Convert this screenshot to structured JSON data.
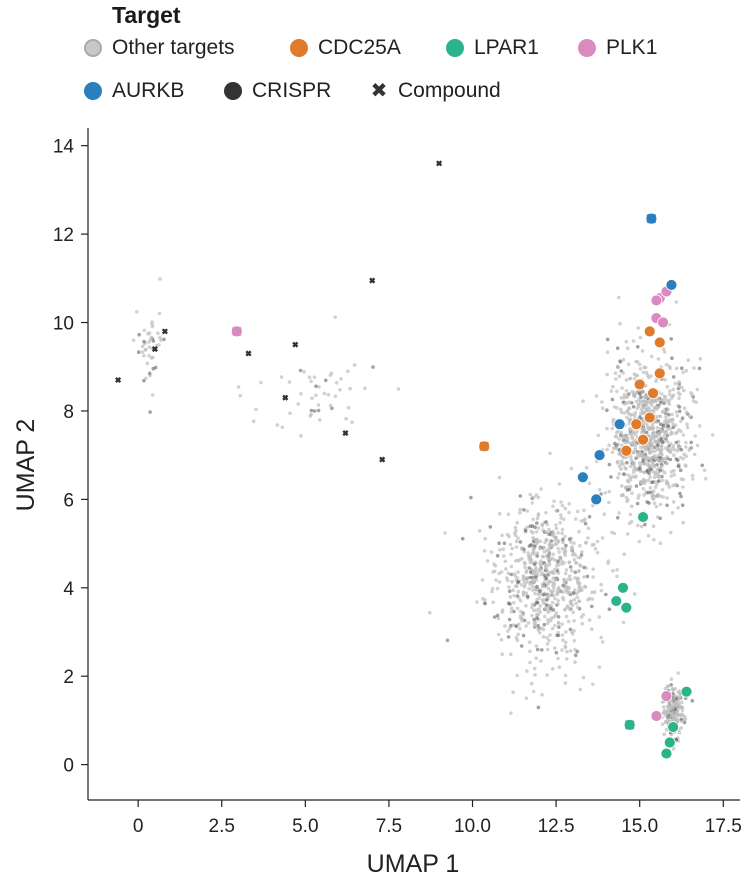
{
  "legend": {
    "title": "Target",
    "items": [
      {
        "label": "Other targets",
        "kind": "circle",
        "color": "#c8c8c8"
      },
      {
        "label": "CDC25A",
        "kind": "circle",
        "color": "#e07b2c"
      },
      {
        "label": "LPAR1",
        "kind": "circle",
        "color": "#2bb38b"
      },
      {
        "label": "PLK1",
        "kind": "circle",
        "color": "#d98bc0"
      },
      {
        "label": "AURKB",
        "kind": "circle",
        "color": "#2a7fbf"
      },
      {
        "label": "CRISPR",
        "kind": "circle",
        "color": "#333333"
      },
      {
        "label": "Compound",
        "kind": "cross",
        "color": "#333333"
      }
    ]
  },
  "chart_data": {
    "type": "scatter",
    "xlabel": "UMAP 1",
    "ylabel": "UMAP 2",
    "xlim": [
      -1.5,
      18.0
    ],
    "ylim": [
      -0.8,
      14.4
    ],
    "xticks": [
      0,
      2.5,
      5.0,
      7.5,
      10.0,
      12.5,
      15.0,
      17.5
    ],
    "xtick_labels": [
      "0",
      "2.5",
      "5.0",
      "7.5",
      "10.0",
      "12.5",
      "15.0",
      "17.5"
    ],
    "yticks": [
      0,
      2,
      4,
      6,
      8,
      10,
      12,
      14
    ],
    "ytick_labels": [
      "0",
      "2",
      "4",
      "6",
      "8",
      "10",
      "12",
      "14"
    ],
    "background_clusters": [
      {
        "name": "Other targets",
        "center": [
          12.1,
          4.2
        ],
        "spread": [
          1.4,
          1.5
        ],
        "count": 700
      },
      {
        "name": "Other targets",
        "center": [
          15.3,
          7.4
        ],
        "spread": [
          1.0,
          1.5
        ],
        "count": 850
      },
      {
        "name": "Other targets",
        "center": [
          16.0,
          1.2
        ],
        "spread": [
          0.25,
          0.5
        ],
        "count": 180
      },
      {
        "name": "Other targets",
        "center": [
          0.4,
          9.4
        ],
        "spread": [
          0.35,
          0.8
        ],
        "count": 45
      },
      {
        "name": "Other targets",
        "center": [
          5.5,
          8.4
        ],
        "spread": [
          1.8,
          0.8
        ],
        "count": 50
      }
    ],
    "series": [
      {
        "name": "CDC25A",
        "marker": "circle",
        "color": "#e07b2c",
        "points": [
          [
            15.3,
            9.8
          ],
          [
            15.6,
            9.55
          ],
          [
            15.0,
            8.6
          ],
          [
            15.4,
            8.4
          ],
          [
            15.6,
            8.85
          ],
          [
            15.3,
            7.85
          ],
          [
            14.9,
            7.7
          ],
          [
            14.6,
            7.1
          ],
          [
            15.1,
            7.35
          ],
          [
            10.35,
            7.2
          ]
        ]
      },
      {
        "name": "LPAR1",
        "marker": "circle",
        "color": "#2bb38b",
        "points": [
          [
            15.1,
            5.6
          ],
          [
            14.5,
            4.0
          ],
          [
            14.3,
            3.7
          ],
          [
            14.6,
            3.55
          ],
          [
            16.4,
            1.65
          ],
          [
            16.0,
            0.85
          ],
          [
            15.9,
            0.5
          ],
          [
            15.8,
            0.25
          ],
          [
            14.7,
            0.9
          ]
        ]
      },
      {
        "name": "PLK1",
        "marker": "circle",
        "color": "#d98bc0",
        "points": [
          [
            15.5,
            10.1
          ],
          [
            15.6,
            10.55
          ],
          [
            15.8,
            10.7
          ],
          [
            15.5,
            10.5
          ],
          [
            15.7,
            10.0
          ],
          [
            15.8,
            1.55
          ],
          [
            15.5,
            1.1
          ],
          [
            2.95,
            9.8
          ]
        ]
      },
      {
        "name": "AURKB",
        "marker": "circle",
        "color": "#2a7fbf",
        "points": [
          [
            14.4,
            7.7
          ],
          [
            13.8,
            7.0
          ],
          [
            13.3,
            6.5
          ],
          [
            13.7,
            6.0
          ],
          [
            15.95,
            10.85
          ],
          [
            15.35,
            12.35
          ]
        ]
      },
      {
        "name": "Compound",
        "marker": "cross",
        "color": "#333333",
        "points": [
          [
            -0.6,
            8.7
          ],
          [
            0.5,
            9.4
          ],
          [
            0.8,
            9.8
          ],
          [
            3.3,
            9.3
          ],
          [
            4.7,
            9.5
          ],
          [
            4.4,
            8.3
          ],
          [
            7.0,
            10.95
          ],
          [
            6.2,
            7.5
          ],
          [
            7.3,
            6.9
          ],
          [
            9.0,
            13.6
          ]
        ]
      }
    ],
    "highlighted_compounds": [
      {
        "x": 2.95,
        "y": 9.8,
        "color": "#d98bc0"
      },
      {
        "x": 10.35,
        "y": 7.2,
        "color": "#e07b2c"
      },
      {
        "x": 15.35,
        "y": 12.35,
        "color": "#2a7fbf"
      },
      {
        "x": 14.7,
        "y": 0.9,
        "color": "#2bb38b"
      }
    ]
  }
}
